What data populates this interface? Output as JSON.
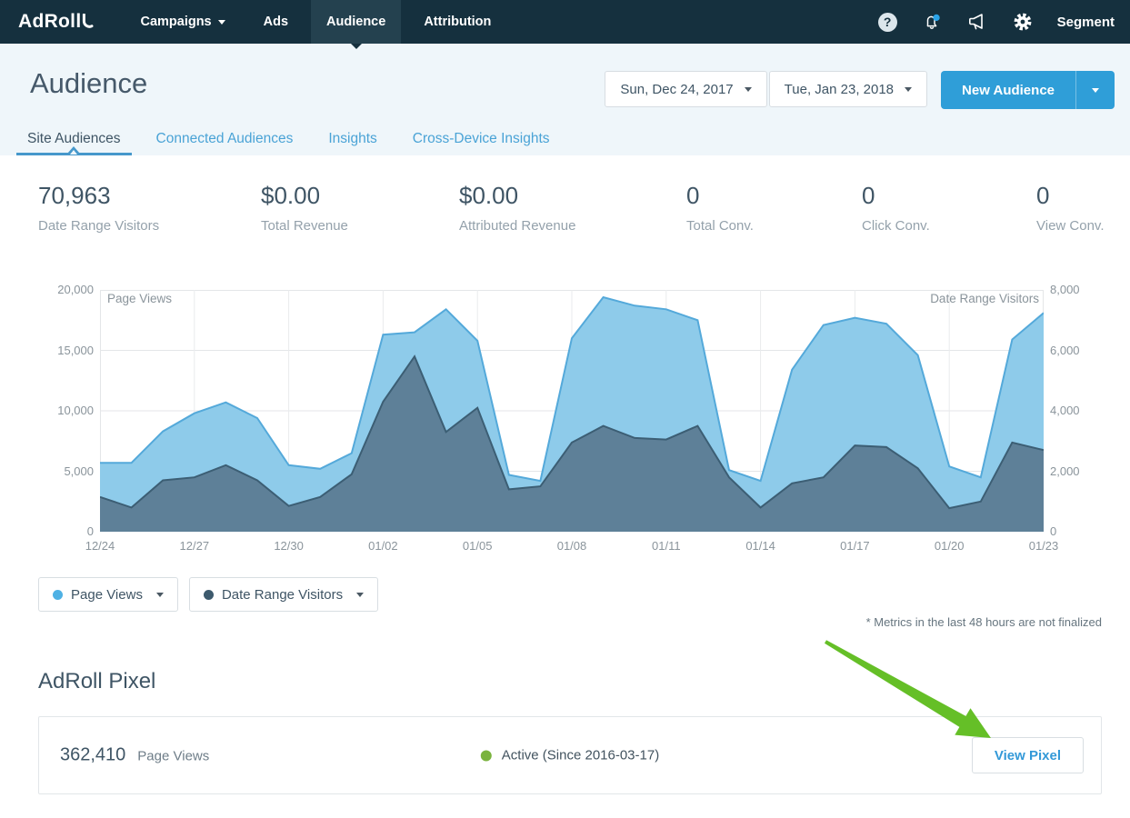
{
  "nav": {
    "brand": "AdRoll",
    "items": [
      {
        "id": "campaigns",
        "label": "Campaigns",
        "caret": true,
        "active": false
      },
      {
        "id": "ads",
        "label": "Ads",
        "caret": false,
        "active": false
      },
      {
        "id": "audience",
        "label": "Audience",
        "caret": false,
        "active": true
      },
      {
        "id": "attribution",
        "label": "Attribution",
        "caret": false,
        "active": false
      }
    ],
    "help_glyph": "?",
    "account_label": "Segment"
  },
  "header": {
    "title": "Audience",
    "date_start": "Sun, Dec 24, 2017",
    "date_end": "Tue, Jan 23, 2018",
    "new_audience_label": "New Audience"
  },
  "tabs": [
    {
      "id": "site-audiences",
      "label": "Site Audiences",
      "active": true
    },
    {
      "id": "connected-audiences",
      "label": "Connected Audiences",
      "active": false
    },
    {
      "id": "insights",
      "label": "Insights",
      "active": false
    },
    {
      "id": "cross-device-insights",
      "label": "Cross-Device Insights",
      "active": false
    }
  ],
  "stats": [
    {
      "value": "70,963",
      "label": "Date Range Visitors"
    },
    {
      "value": "$0.00",
      "label": "Total Revenue"
    },
    {
      "value": "$0.00",
      "label": "Attributed Revenue"
    },
    {
      "value": "0",
      "label": "Total Conv."
    },
    {
      "value": "0",
      "label": "Click Conv."
    },
    {
      "value": "0",
      "label": "View Conv."
    }
  ],
  "chart_data": {
    "type": "area",
    "x": [
      "12/24",
      "12/25",
      "12/26",
      "12/27",
      "12/28",
      "12/29",
      "12/30",
      "12/31",
      "01/01",
      "01/02",
      "01/03",
      "01/04",
      "01/05",
      "01/06",
      "01/07",
      "01/08",
      "01/09",
      "01/10",
      "01/11",
      "01/12",
      "01/13",
      "01/14",
      "01/15",
      "01/16",
      "01/17",
      "01/18",
      "01/19",
      "01/20",
      "01/21",
      "01/22",
      "01/23"
    ],
    "x_tick_labels": [
      "12/24",
      "12/27",
      "12/30",
      "01/02",
      "01/05",
      "01/08",
      "01/11",
      "01/14",
      "01/17",
      "01/20",
      "01/23"
    ],
    "series": [
      {
        "name": "Page Views",
        "axis": "left",
        "fill": "#8ecbea",
        "line": "#54a9da",
        "values": [
          5700,
          5700,
          8300,
          9800,
          10700,
          9400,
          5500,
          5200,
          6500,
          16300,
          16500,
          18400,
          15800,
          4700,
          4200,
          16000,
          19400,
          18700,
          18400,
          17500,
          5100,
          4200,
          13400,
          17100,
          17700,
          17200,
          14600,
          5400,
          4500,
          15900,
          18100
        ]
      },
      {
        "name": "Date Range Visitors",
        "axis": "right",
        "fill": "#5e8098",
        "line": "#3c5e74",
        "values": [
          1150,
          800,
          1700,
          1800,
          2200,
          1700,
          850,
          1150,
          1900,
          4300,
          5800,
          3300,
          4100,
          1400,
          1500,
          2950,
          3500,
          3100,
          3050,
          3500,
          1800,
          800,
          1600,
          1800,
          2850,
          2800,
          2100,
          780,
          1000,
          2950,
          2700
        ]
      }
    ],
    "left_axis": {
      "label": "Page Views",
      "max": 20000,
      "min": 0,
      "ticks": [
        "0",
        "5,000",
        "10,000",
        "15,000",
        "20,000"
      ]
    },
    "right_axis": {
      "label": "Date Range Visitors",
      "max": 8000,
      "min": 0,
      "ticks": [
        "0",
        "2,000",
        "4,000",
        "6,000",
        "8,000"
      ]
    },
    "grid": true,
    "legend_position": "bottom-left"
  },
  "legend": [
    {
      "label": "Page Views",
      "dot": "#4fb1e4"
    },
    {
      "label": "Date Range Visitors",
      "dot": "#3d5a6d"
    }
  ],
  "footnote": "* Metrics in the last 48 hours are not finalized",
  "pixel_section": {
    "title": "AdRoll Pixel",
    "views_value": "362,410",
    "views_label": "Page Views",
    "status_label": "Active (Since 2016-03-17)",
    "status_color": "#7ab33e",
    "button_label": "View Pixel"
  },
  "annotation": {
    "arrow_color": "#65bf27"
  },
  "colors": {
    "nav_bg": "#15303e",
    "accent_blue": "#2f9ed8",
    "header_bg": "#eff6fa"
  }
}
